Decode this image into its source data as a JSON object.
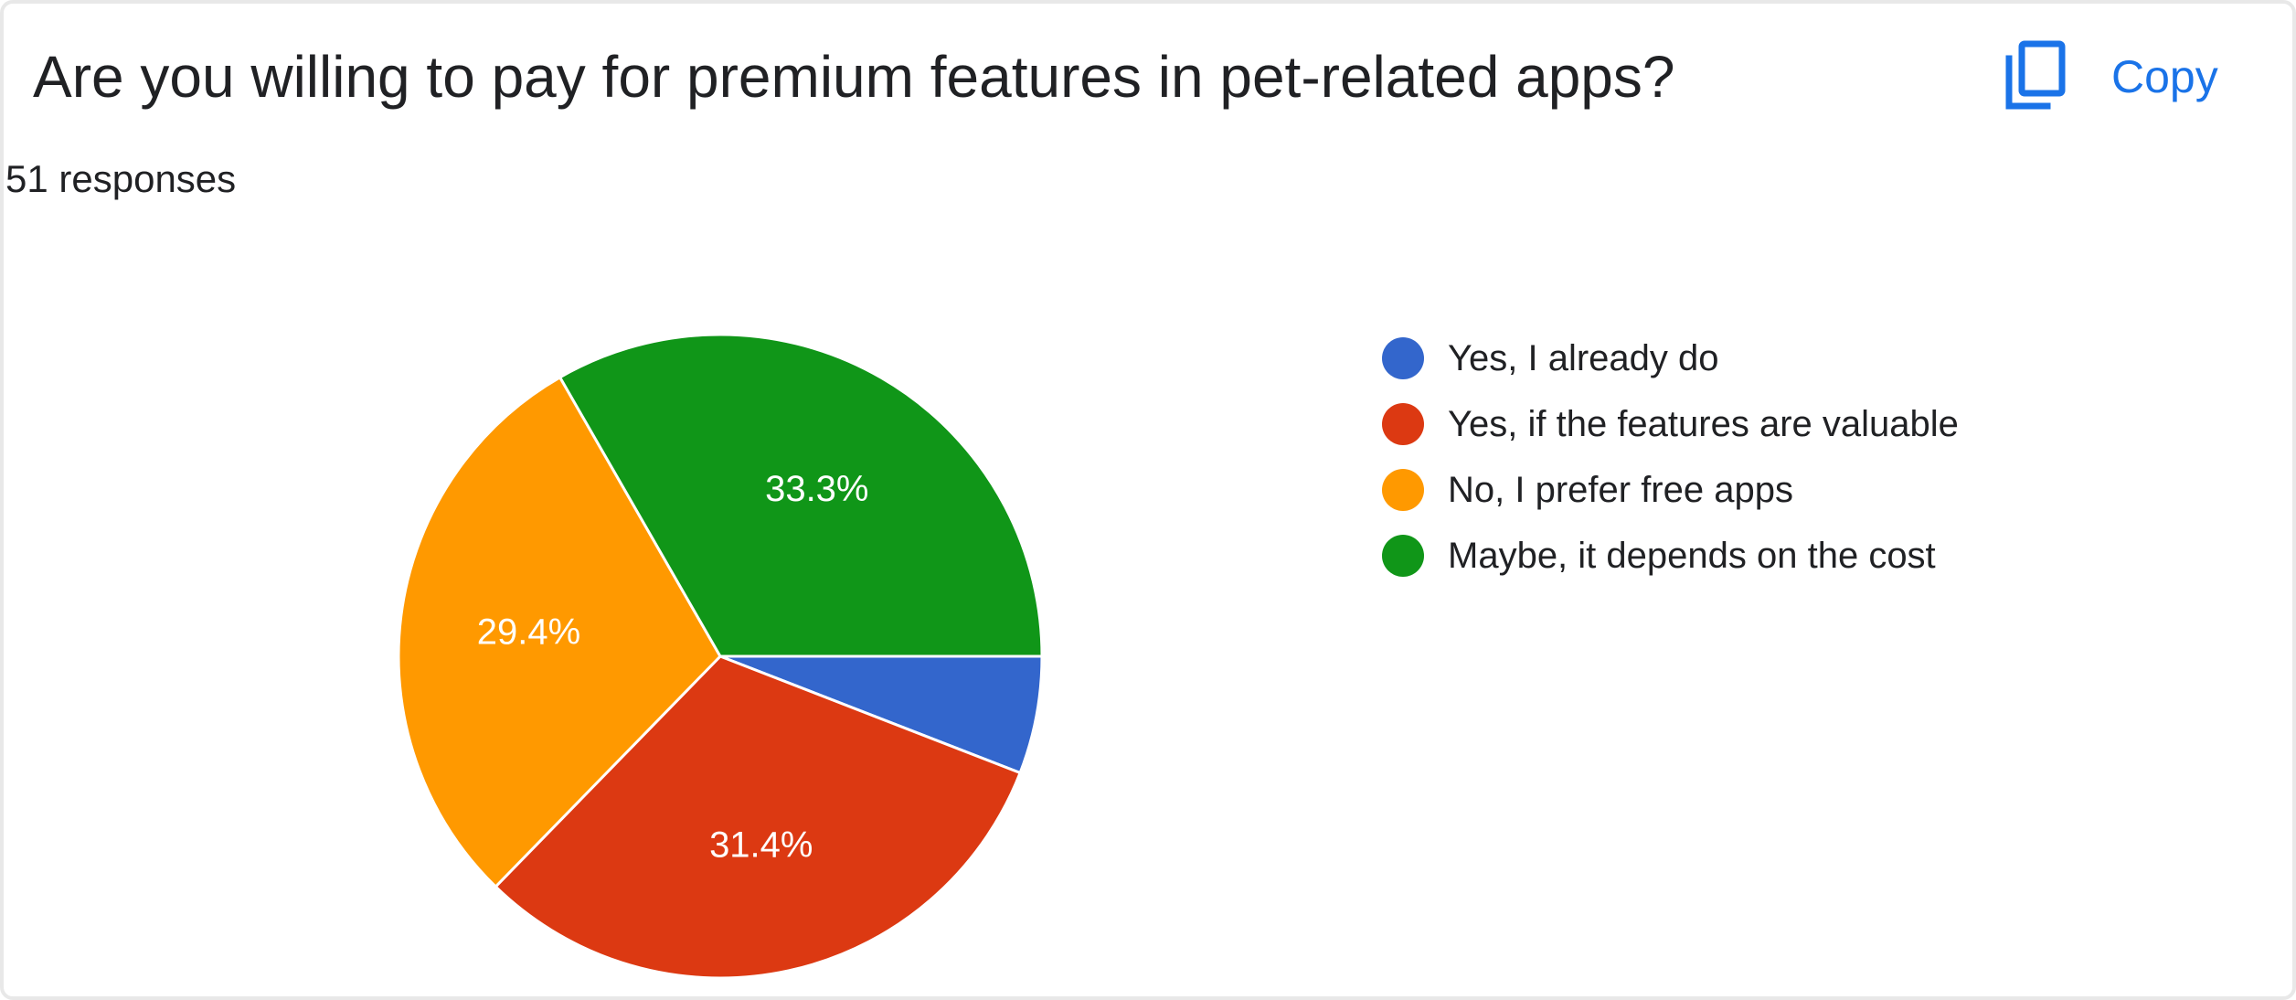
{
  "question": {
    "title": "Are you willing to pay for premium features in pet-related apps?",
    "response_count": "51 responses"
  },
  "toolbar": {
    "copy_label": "Copy",
    "copy_icon": "copy-icon"
  },
  "chart_data": {
    "type": "pie",
    "categories": [
      "Yes, I already do",
      "Yes, if the features are valuable",
      "No, I prefer free apps",
      "Maybe, it depends on the cost"
    ],
    "values": [
      5.9,
      31.4,
      29.4,
      33.3
    ],
    "labels": [
      "",
      "31.4%",
      "29.4%",
      "33.3%"
    ],
    "colors": [
      "#3366cc",
      "#dc3912",
      "#ff9900",
      "#109618"
    ],
    "legend_position": "right",
    "start": "3 o'clock",
    "direction": "clockwise"
  }
}
